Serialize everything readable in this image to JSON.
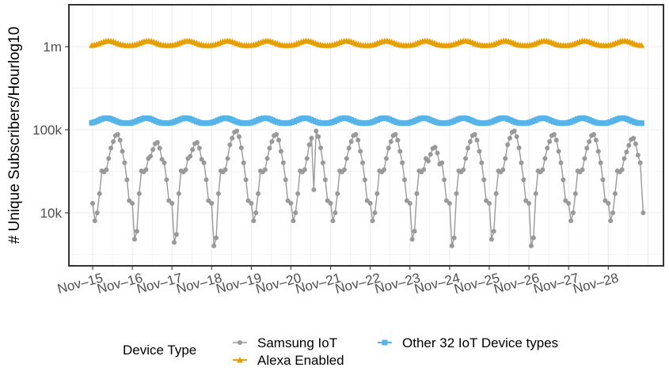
{
  "chart_data": {
    "type": "line",
    "ylabel": "# Unique Subscribers/Hourlog10",
    "xlabel": "",
    "y_scale": "log10",
    "ylim": [
      3000,
      3500000
    ],
    "y_ticks": [
      {
        "value": 10000,
        "label": "10k"
      },
      {
        "value": 100000,
        "label": "100k"
      },
      {
        "value": 1000000,
        "label": "1m"
      }
    ],
    "x_ticks": [
      "Nov–15",
      "Nov–16",
      "Nov–17",
      "Nov–18",
      "Nov–19",
      "Nov–20",
      "Nov–21",
      "Nov–22",
      "Nov–23",
      "Nov–24",
      "Nov–25",
      "Nov–26",
      "Nov–27",
      "Nov–28"
    ],
    "x_start_label": "Nov–15",
    "grid": true,
    "legend": {
      "title": "Device Type",
      "position": "bottom",
      "items": [
        {
          "label": "Samsung IoT",
          "color": "#999999",
          "marker": "circle"
        },
        {
          "label": "Alexa Enabled",
          "color": "#E69F00",
          "marker": "triangle"
        },
        {
          "label": "Other 32 IoT Device types",
          "color": "#56B4E9",
          "marker": "square"
        }
      ]
    },
    "series": [
      {
        "name": "Samsung IoT",
        "color": "#999999",
        "marker": "circle",
        "daily_profile": [
          13000,
          8000,
          10000,
          17000,
          32000,
          31000,
          33000,
          45000,
          60000,
          72000,
          85000,
          88000,
          75000,
          55000,
          40000,
          25000,
          14000
        ],
        "day_peak_adjust": [
          1.0,
          0.8,
          0.8,
          1.1,
          1.0,
          1.1,
          1.0,
          1.0,
          0.7,
          1.0,
          1.1,
          1.0,
          1.0,
          0.9
        ],
        "day_trough_adjust": [
          1.0,
          0.6,
          0.55,
          0.5,
          1.0,
          1.0,
          1.0,
          1.0,
          0.6,
          0.5,
          0.6,
          0.5,
          1.0,
          1.0
        ],
        "anomaly": {
          "x": 5.55,
          "value": 19000
        }
      },
      {
        "name": "Alexa Enabled",
        "color": "#E69F00",
        "marker": "triangle",
        "base": 1040000,
        "peak": 1180000
      },
      {
        "name": "Other 32 IoT Device types",
        "color": "#56B4E9",
        "marker": "square",
        "base": 120000,
        "peak": 138000
      }
    ]
  }
}
